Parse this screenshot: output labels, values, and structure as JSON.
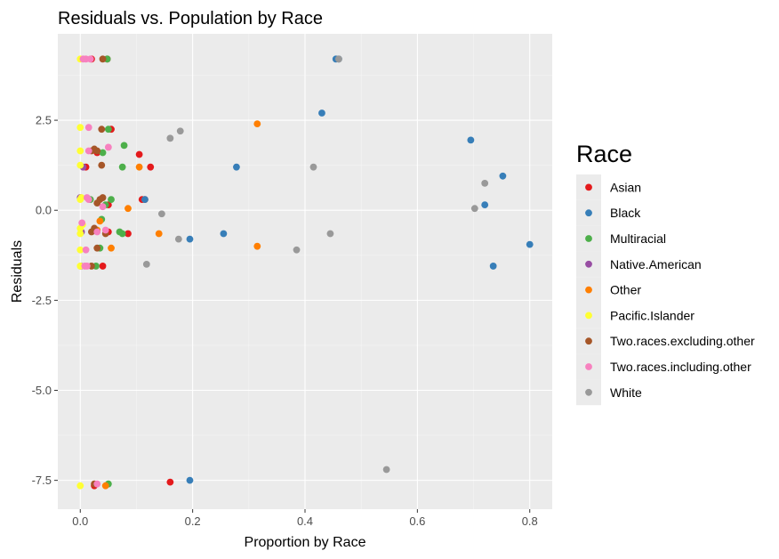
{
  "chart_data": {
    "type": "scatter",
    "title": "Residuals vs. Population by Race",
    "xlabel": "Proportion by Race",
    "ylabel": "Residuals",
    "xlim": [
      -0.04,
      0.84
    ],
    "ylim": [
      -8.3,
      4.9
    ],
    "xticks": [
      0.0,
      0.2,
      0.4,
      0.6,
      0.8
    ],
    "xtick_labels": [
      "0.0",
      "0.2",
      "0.4",
      "0.6",
      "0.8"
    ],
    "yticks": [
      -7.5,
      -5.0,
      -2.5,
      0.0,
      2.5
    ],
    "ytick_labels": [
      "-7.5",
      "-5.0",
      "-2.5",
      "0.0",
      "2.5"
    ],
    "grid": true,
    "legend_title": "Race",
    "legend_position": "right",
    "series": [
      {
        "name": "Asian",
        "color": "#E41A1C",
        "points": [
          [
            0.02,
            4.2
          ],
          [
            0.048,
            4.2
          ],
          [
            0.055,
            2.25
          ],
          [
            0.105,
            1.55
          ],
          [
            0.11,
            0.3
          ],
          [
            0.115,
            0.3
          ],
          [
            0.125,
            1.2
          ],
          [
            0.04,
            -1.55
          ],
          [
            0.085,
            -0.65
          ],
          [
            0.05,
            -0.6
          ],
          [
            0.16,
            -7.55
          ],
          [
            0.025,
            -7.65
          ],
          [
            0.01,
            1.2
          ],
          [
            0.03,
            1.6
          ],
          [
            0.05,
            0.15
          ]
        ]
      },
      {
        "name": "Black",
        "color": "#377EB8",
        "points": [
          [
            0.455,
            4.2
          ],
          [
            0.46,
            4.2
          ],
          [
            0.43,
            2.7
          ],
          [
            0.278,
            1.2
          ],
          [
            0.115,
            0.3
          ],
          [
            0.255,
            -0.65
          ],
          [
            0.195,
            -0.8
          ],
          [
            0.195,
            -7.5
          ],
          [
            0.695,
            1.95
          ],
          [
            0.752,
            0.95
          ],
          [
            0.72,
            0.15
          ],
          [
            0.735,
            -1.55
          ],
          [
            0.8,
            -0.95
          ]
        ]
      },
      {
        "name": "Multiracial",
        "color": "#4DAF4A",
        "points": [
          [
            0.048,
            4.2
          ],
          [
            0.078,
            1.8
          ],
          [
            0.075,
            1.2
          ],
          [
            0.055,
            0.3
          ],
          [
            0.07,
            -0.6
          ],
          [
            0.038,
            -0.25
          ],
          [
            0.035,
            -1.05
          ],
          [
            0.05,
            -7.6
          ],
          [
            0.05,
            2.25
          ],
          [
            0.04,
            1.6
          ],
          [
            0.045,
            0.15
          ],
          [
            0.075,
            -0.65
          ],
          [
            0.028,
            -1.55
          ],
          [
            0.018,
            0.3
          ]
        ]
      },
      {
        "name": "Native.American",
        "color": "#984EA3",
        "points": [
          [
            0.0,
            0.35
          ],
          [
            0.005,
            1.2
          ],
          [
            0.002,
            -0.6
          ],
          [
            0.001,
            -1.55
          ]
        ]
      },
      {
        "name": "Other",
        "color": "#FF7F00",
        "points": [
          [
            0.315,
            2.4
          ],
          [
            0.105,
            1.2
          ],
          [
            0.085,
            0.05
          ],
          [
            0.14,
            -0.65
          ],
          [
            0.315,
            -1.0
          ],
          [
            0.055,
            -1.05
          ],
          [
            0.035,
            -0.3
          ],
          [
            0.03,
            -0.55
          ],
          [
            0.045,
            -7.65
          ]
        ]
      },
      {
        "name": "Pacific.Islander",
        "color": "#FFFF33",
        "points": [
          [
            0.0,
            4.2
          ],
          [
            0.0,
            2.3
          ],
          [
            0.0,
            1.65
          ],
          [
            0.0,
            1.25
          ],
          [
            0.0,
            0.3
          ],
          [
            0.0,
            -0.5
          ],
          [
            0.0,
            -0.65
          ],
          [
            0.0,
            -1.1
          ],
          [
            0.0,
            -1.55
          ],
          [
            0.0,
            -7.65
          ],
          [
            0.002,
            0.35
          ],
          [
            0.004,
            -0.4
          ]
        ]
      },
      {
        "name": "Two.races.excluding.other",
        "color": "#A65628",
        "points": [
          [
            0.04,
            4.2
          ],
          [
            0.038,
            2.25
          ],
          [
            0.025,
            1.7
          ],
          [
            0.03,
            1.65
          ],
          [
            0.038,
            1.25
          ],
          [
            0.04,
            0.35
          ],
          [
            0.03,
            0.2
          ],
          [
            0.025,
            -0.5
          ],
          [
            0.03,
            -1.05
          ],
          [
            0.025,
            -7.6
          ],
          [
            0.02,
            1.65
          ],
          [
            0.035,
            0.3
          ],
          [
            0.02,
            -0.6
          ],
          [
            0.02,
            -1.55
          ],
          [
            0.045,
            -0.65
          ]
        ]
      },
      {
        "name": "Two.races.including.other",
        "color": "#F781BF",
        "points": [
          [
            0.01,
            4.2
          ],
          [
            0.015,
            2.3
          ],
          [
            0.05,
            1.75
          ],
          [
            0.015,
            1.65
          ],
          [
            0.012,
            0.35
          ],
          [
            0.04,
            0.1
          ],
          [
            0.03,
            -0.6
          ],
          [
            0.045,
            -0.55
          ],
          [
            0.01,
            -1.1
          ],
          [
            0.012,
            -1.55
          ],
          [
            0.03,
            -7.6
          ],
          [
            0.015,
            0.3
          ],
          [
            0.003,
            -0.35
          ],
          [
            0.005,
            4.2
          ],
          [
            0.008,
            -1.55
          ],
          [
            0.018,
            4.2
          ]
        ]
      },
      {
        "name": "White",
        "color": "#999999",
        "points": [
          [
            0.46,
            4.2
          ],
          [
            0.178,
            2.2
          ],
          [
            0.16,
            2.0
          ],
          [
            0.415,
            1.2
          ],
          [
            0.145,
            -0.1
          ],
          [
            0.175,
            -0.8
          ],
          [
            0.118,
            -1.5
          ],
          [
            0.385,
            -1.1
          ],
          [
            0.445,
            -0.65
          ],
          [
            0.545,
            -7.2
          ],
          [
            0.72,
            0.75
          ],
          [
            0.702,
            0.05
          ]
        ]
      }
    ]
  }
}
